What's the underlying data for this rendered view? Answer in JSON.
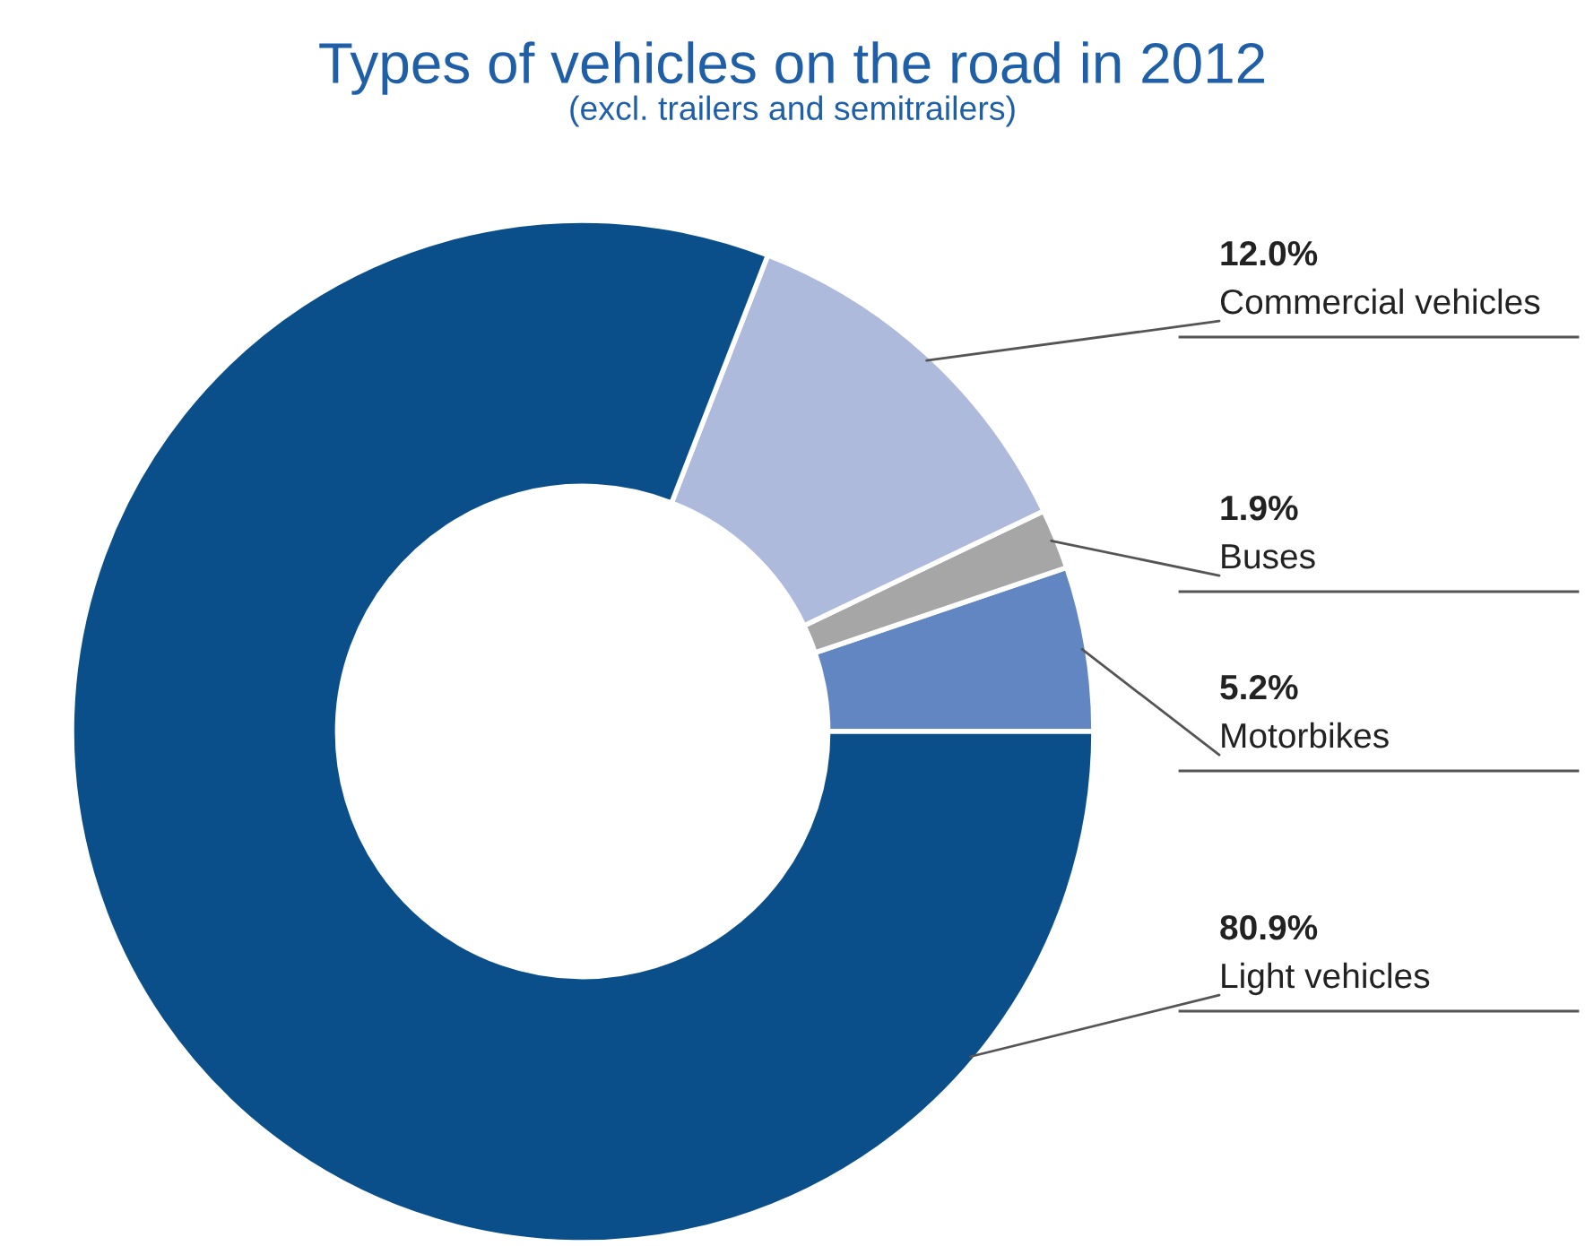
{
  "chart_data": {
    "type": "donut",
    "title": "Types of vehicles on the road in 2012",
    "subtitle": "(excl. trailers and semitrailers)",
    "categories": [
      "Motorbikes",
      "Buses",
      "Commercial vehicles",
      "Light vehicles"
    ],
    "values": [
      5.2,
      1.9,
      12.0,
      80.9
    ],
    "colors": [
      "#6286c2",
      "#a6a6a6",
      "#aebadb",
      "#0b4f8a"
    ],
    "value_labels": [
      "5.2%",
      "1.9%",
      "12.0%",
      "80.9%"
    ],
    "legend": false
  }
}
